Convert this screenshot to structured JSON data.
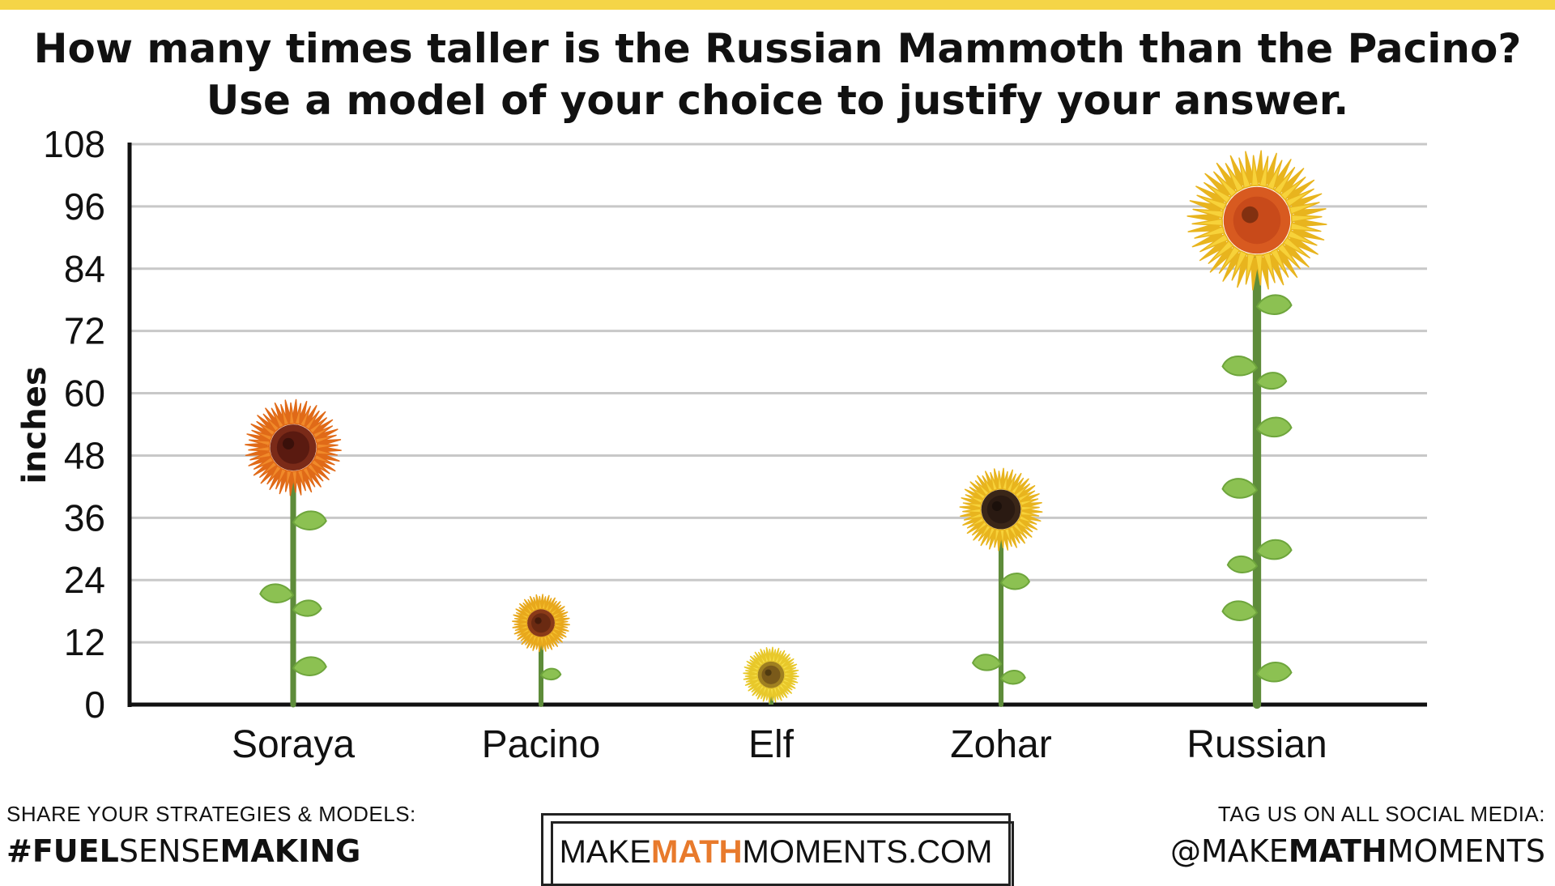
{
  "title_line1": "How many times taller is the Russian Mammoth than the Pacino?",
  "title_line2": "Use a model of your choice to justify your answer.",
  "footer": {
    "share_label": "SHARE YOUR STRATEGIES & MODELS:",
    "hashtag_bold1": "#FUEL",
    "hashtag_mid": "SENSE",
    "hashtag_bold2": "MAKING",
    "logo_part1": "MAKE",
    "logo_accent": "MATH",
    "logo_part2": "MOMENTS.COM",
    "tag_label": "TAG US ON ALL SOCIAL MEDIA:",
    "handle_part1": "@MAKE",
    "handle_bold": "MATH",
    "handle_part2": "MOMENTS"
  },
  "colors": {
    "accent_yellow": "#f5d547",
    "logo_accent": "#e87a2c",
    "stem": "#5e8c3a",
    "leaf": "#8cc152",
    "grid": "#c8c8c8"
  },
  "chart_data": {
    "type": "bar",
    "ylabel": "inches",
    "xlabel": "",
    "ylim": [
      0,
      108
    ],
    "yticks": [
      0,
      12,
      24,
      36,
      48,
      60,
      72,
      84,
      96,
      108
    ],
    "grid": true,
    "categories": [
      "Soraya",
      "Pacino",
      "Elf",
      "Zohar",
      "Russian"
    ],
    "values": [
      50,
      16,
      6,
      38,
      94
    ],
    "marker": "sunflower-icon",
    "flowers": [
      {
        "petal": "#f08a2a",
        "petal_edge": "#e06a18",
        "center": "#5a1a10",
        "center_ring": "#7a2a18"
      },
      {
        "petal": "#f7c531",
        "petal_edge": "#e8a81c",
        "center": "#6a2a12",
        "center_ring": "#8a3a18"
      },
      {
        "petal": "#f7e04a",
        "petal_edge": "#e8c82a",
        "center": "#7a5a1a",
        "center_ring": "#a08020"
      },
      {
        "petal": "#f7d23a",
        "petal_edge": "#e8b41e",
        "center": "#2a1a12",
        "center_ring": "#3a2618"
      },
      {
        "petal": "#f7d23a",
        "petal_edge": "#e8b41e",
        "center": "#c84a1a",
        "center_ring": "#d85a20"
      }
    ]
  }
}
